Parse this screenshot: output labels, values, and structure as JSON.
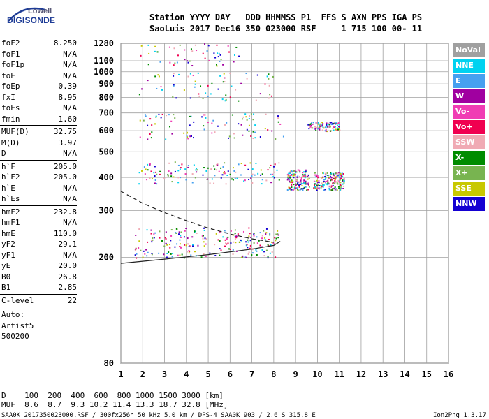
{
  "logo": {
    "line1": "Lowell",
    "line2": "DIGISONDE"
  },
  "header": {
    "row1": "Station YYYY DAY   DDD HHMMSS P1  FFS S AXN PPS IGA PS",
    "row2": "SaoLuis 2017 Dec16 350 023000 RSF     1 715 100 00- 11"
  },
  "params": {
    "group1": [
      {
        "name": "foF2",
        "value": "8.250"
      },
      {
        "name": "foF1",
        "value": "N/A"
      },
      {
        "name": "foF1p",
        "value": "N/A"
      },
      {
        "name": "foE",
        "value": "N/A"
      },
      {
        "name": "foEp",
        "value": "0.39"
      },
      {
        "name": "fxI",
        "value": "8.95"
      },
      {
        "name": "foEs",
        "value": "N/A"
      },
      {
        "name": "fmin",
        "value": "1.60"
      }
    ],
    "group2": [
      {
        "name": "MUF(D)",
        "value": "32.75"
      },
      {
        "name": "M(D)",
        "value": "3.97"
      },
      {
        "name": "D",
        "value": "N/A"
      }
    ],
    "group3": [
      {
        "name": "h`F",
        "value": "205.0"
      },
      {
        "name": "h`F2",
        "value": "205.0"
      },
      {
        "name": "h`E",
        "value": "N/A"
      },
      {
        "name": "h`Es",
        "value": "N/A"
      }
    ],
    "group4": [
      {
        "name": "hmF2",
        "value": "232.8"
      },
      {
        "name": "hmF1",
        "value": "N/A"
      },
      {
        "name": "hmE",
        "value": "110.0"
      },
      {
        "name": "yF2",
        "value": "29.1"
      },
      {
        "name": "yF1",
        "value": "N/A"
      },
      {
        "name": "yE",
        "value": "20.0"
      },
      {
        "name": "B0",
        "value": "26.8"
      },
      {
        "name": "B1",
        "value": "2.85"
      }
    ],
    "clevel": {
      "name": "C-level",
      "value": "22"
    },
    "auto": [
      "Auto:",
      "Artist5",
      "500200"
    ]
  },
  "legend": [
    {
      "label": "NoVal",
      "color": "#a0a0a0"
    },
    {
      "label": "NNE",
      "color": "#00d2f0"
    },
    {
      "label": "E",
      "color": "#46a0f0"
    },
    {
      "label": "W",
      "color": "#a000a0"
    },
    {
      "label": "Vo-",
      "color": "#f03cb4"
    },
    {
      "label": "Vo+",
      "color": "#f00050"
    },
    {
      "label": "SSW",
      "color": "#f0aab4"
    },
    {
      "label": "X-",
      "color": "#008c00"
    },
    {
      "label": "X+",
      "color": "#78b450"
    },
    {
      "label": "SSE",
      "color": "#c8c800"
    },
    {
      "label": "NNW",
      "color": "#1400d2"
    }
  ],
  "chart_data": {
    "type": "scatter",
    "xlabel": "",
    "ylabel": "",
    "x_ticks": [
      1,
      2,
      3,
      4,
      5,
      6,
      7,
      8,
      9,
      10,
      11,
      12,
      13,
      14,
      15,
      16
    ],
    "y_ticks": [
      80,
      200,
      300,
      400,
      500,
      600,
      700,
      800,
      900,
      1000,
      1100,
      1280
    ],
    "xlim": [
      1,
      16
    ],
    "ylim": [
      80,
      1280
    ],
    "y_scale": "log",
    "grid": true,
    "traces": [
      {
        "name": "",
        "style": "solid",
        "points": [
          [
            1.0,
            190
          ],
          [
            3.0,
            197
          ],
          [
            5.0,
            205
          ],
          [
            7.0,
            215
          ],
          [
            8.0,
            222
          ],
          [
            8.3,
            230
          ]
        ]
      },
      {
        "name": "",
        "style": "dashed",
        "points": [
          [
            1.0,
            355
          ],
          [
            2.0,
            320
          ],
          [
            3.0,
            295
          ],
          [
            4.0,
            275
          ],
          [
            5.0,
            258
          ],
          [
            6.0,
            245
          ],
          [
            7.0,
            235
          ],
          [
            8.0,
            228
          ]
        ]
      }
    ],
    "echo_regions": [
      {
        "x": [
          1.6,
          8.2
        ],
        "y": [
          200,
          260
        ],
        "density": 0.9
      },
      {
        "x": [
          1.8,
          8.4
        ],
        "y": [
          380,
          460
        ],
        "density": 0.5
      },
      {
        "x": [
          8.6,
          9.6
        ],
        "y": [
          360,
          430
        ],
        "density": 0.6
      },
      {
        "x": [
          9.8,
          11.2
        ],
        "y": [
          360,
          420
        ],
        "density": 0.7
      },
      {
        "x": [
          1.8,
          8.5
        ],
        "y": [
          560,
          700
        ],
        "density": 0.35
      },
      {
        "x": [
          9.5,
          11.0
        ],
        "y": [
          600,
          650
        ],
        "density": 0.4
      },
      {
        "x": [
          1.8,
          8.0
        ],
        "y": [
          780,
          1000
        ],
        "density": 0.25
      },
      {
        "x": [
          1.8,
          6.5
        ],
        "y": [
          1050,
          1280
        ],
        "density": 0.2
      }
    ]
  },
  "footer": {
    "row_d": "D    100  200  400  600  800 1000 1500 3000 [km]",
    "row_muf": "MUF  8.6  8.7  9.3 10.2 11.4 13.3 18.7 32.8 [MHz]",
    "source": "SAA0K_2017350023000.RSF / 300fx256h 50 kHz 5.0 km / DPS-4 SAA0K 903 / 2.6 S 315.8 E",
    "version": "Ion2Png 1.3.17"
  }
}
